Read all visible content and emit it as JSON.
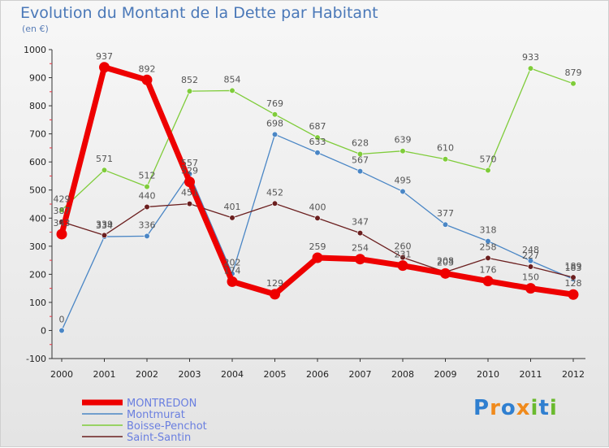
{
  "chart_data": {
    "type": "line",
    "title": "Evolution du Montant de la Dette par Habitant",
    "subtitle": "(en €)",
    "x": [
      "2000",
      "2001",
      "2002",
      "2003",
      "2004",
      "2005",
      "2006",
      "2007",
      "2008",
      "2009",
      "2010",
      "2011",
      "2012"
    ],
    "ylim": [
      -100,
      1000
    ],
    "yticks": [
      -100,
      0,
      100,
      200,
      300,
      400,
      500,
      600,
      700,
      800,
      900,
      1000
    ],
    "grid": false,
    "legend_position": "bottom-left",
    "series": [
      {
        "name": "MONTREDON",
        "color": "#ee0000",
        "values": [
          343,
          937,
          892,
          529,
          174,
          129,
          259,
          254,
          231,
          203,
          176,
          150,
          128
        ]
      },
      {
        "name": "Montmurat",
        "color": "#4a86c5",
        "values": [
          0,
          334,
          336,
          557,
          202,
          698,
          633,
          567,
          495,
          377,
          318,
          248,
          183
        ]
      },
      {
        "name": "Boisse-Penchot",
        "color": "#7fcc3a",
        "values": [
          429,
          571,
          512,
          852,
          854,
          769,
          687,
          628,
          639,
          610,
          570,
          933,
          879
        ]
      },
      {
        "name": "Saint-Santin",
        "color": "#6b1f1f",
        "values": [
          387,
          339,
          440,
          451,
          401,
          452,
          400,
          347,
          260,
          208,
          258,
          227,
          189
        ]
      }
    ]
  },
  "logo": {
    "text": "Proxiti",
    "letters": [
      {
        "ch": "P",
        "color": "#2f7fd0"
      },
      {
        "ch": "r",
        "color": "#f08a1c"
      },
      {
        "ch": "o",
        "color": "#2f7fd0"
      },
      {
        "ch": "x",
        "color": "#f08a1c"
      },
      {
        "ch": "i",
        "color": "#6aba2e"
      },
      {
        "ch": "t",
        "color": "#2f7fd0"
      },
      {
        "ch": "i",
        "color": "#6aba2e"
      }
    ]
  }
}
